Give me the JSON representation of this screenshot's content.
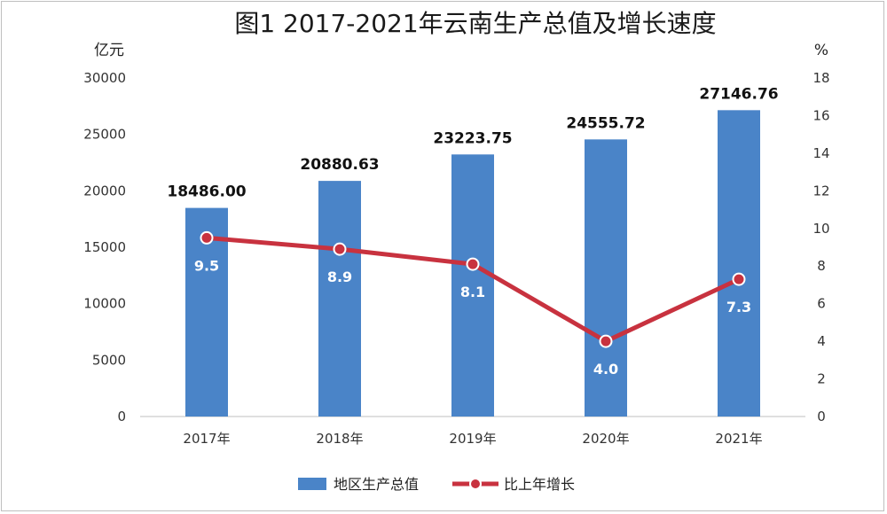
{
  "chart_data": {
    "type": "bar",
    "title": "图1 2017-2021年云南生产总值及增长速度",
    "ylabel_left": "亿元",
    "ylabel_right": "%",
    "categories": [
      "2017年",
      "2018年",
      "2019年",
      "2020年",
      "2021年"
    ],
    "ylim_left": [
      0,
      30000
    ],
    "yticks_left": [
      0,
      5000,
      10000,
      15000,
      20000,
      25000,
      30000
    ],
    "ylim_right": [
      0,
      18
    ],
    "yticks_right": [
      0,
      2,
      4,
      6,
      8,
      10,
      12,
      14,
      16,
      18
    ],
    "grid": false,
    "legend_position": "bottom",
    "series": [
      {
        "name": "地区生产总值",
        "type": "bar",
        "axis": "left",
        "color": "#4a84c8",
        "values": [
          18486.0,
          20880.63,
          23223.75,
          24555.72,
          27146.76
        ],
        "labels": [
          "18486.00",
          "20880.63",
          "23223.75",
          "24555.72",
          "27146.76"
        ]
      },
      {
        "name": "比上年增长",
        "type": "line",
        "axis": "right",
        "color": "#c8323f",
        "values": [
          9.5,
          8.9,
          8.1,
          4.0,
          7.3
        ],
        "labels": [
          "9.5",
          "8.9",
          "8.1",
          "4.0",
          "7.3"
        ]
      }
    ]
  }
}
